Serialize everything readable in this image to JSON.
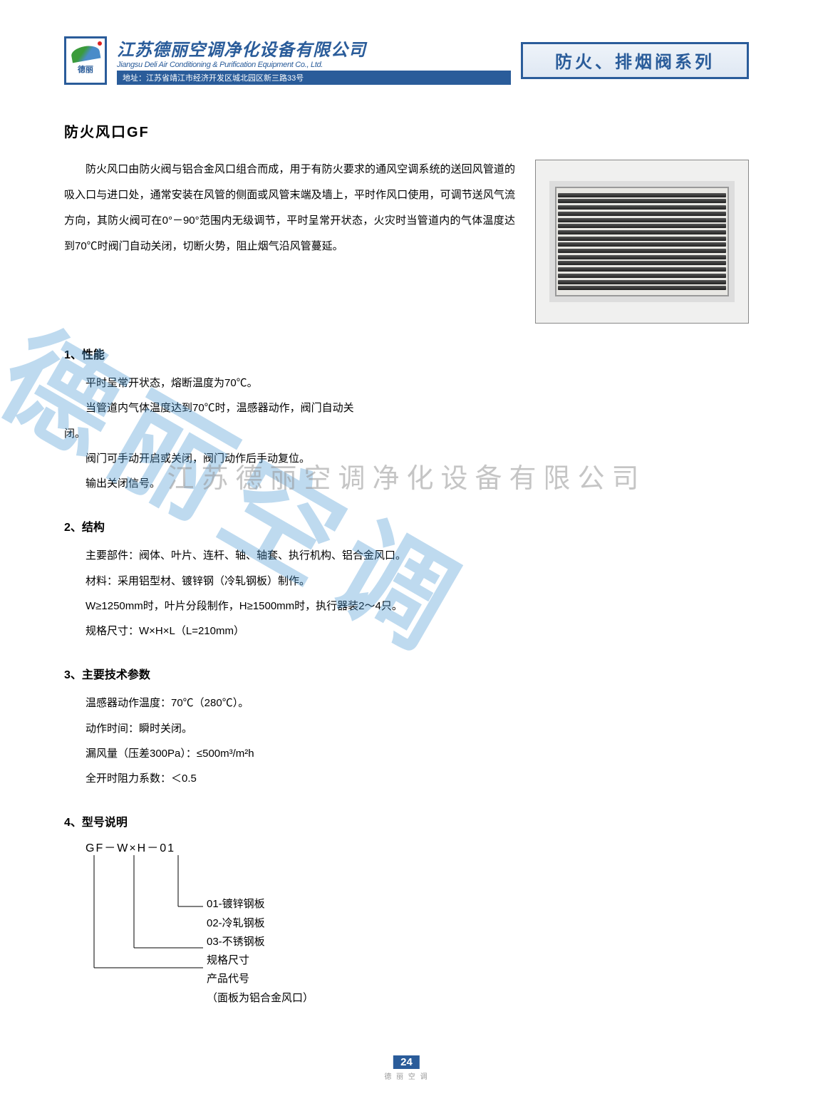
{
  "header": {
    "logo_text": "德丽",
    "company_cn": "江苏德丽空调净化设备有限公司",
    "company_en": "Jiangsu Deli Air Conditioning & Purification Equipment Co., Ltd.",
    "address": "地址：江苏省靖江市经济开发区城北园区新三路33号",
    "series_title": "防火、排烟阀系列"
  },
  "title": "防火风口GF",
  "intro": "防火风口由防火阀与铝合金风口组合而成，用于有防火要求的通风空调系统的送回风管道的吸入口与进口处，通常安装在风管的侧面或风管末端及墙上，平时作风口使用，可调节送风气流方向，其防火阀可在0°－90°范围内无级调节，平时呈常开状态，火灾时当管道内的气体温度达到70℃时阀门自动关闭，切断火势，阻止烟气沿风管蔓延。",
  "sections": [
    {
      "head": "1、性能",
      "lines": [
        "平时呈常开状态，熔断温度为70℃。",
        "当管道内气体温度达到70℃时，温感器动作，阀门自动关闭。",
        "阀门可手动开启或关闭，阀门动作后手动复位。",
        "输出关闭信号。"
      ],
      "breakAfter": 1
    },
    {
      "head": "2、结构",
      "lines": [
        "主要部件：阀体、叶片、连杆、轴、轴套、执行机构、铝合金风口。",
        "材料：采用铝型材、镀锌钢（冷轧钢板）制作。",
        "W≥1250mm时，叶片分段制作，H≥1500mm时，执行器装2～4只。",
        "规格尺寸：W×H×L（L=210mm）"
      ]
    },
    {
      "head": "3、主要技术参数",
      "lines": [
        "温感器动作温度：70℃（280℃）。",
        "动作时间：瞬时关闭。",
        "漏风量（压差300Pa）：≤500m³/m²h",
        "全开时阻力系数：＜0.5"
      ]
    }
  ],
  "model": {
    "head": "4、型号说明",
    "code": "GF－W×H－01",
    "labels": [
      "01-镀锌钢板",
      "02-冷轧钢板",
      "03-不锈钢板",
      "规格尺寸",
      "产品代号",
      "（面板为铝合金风口）"
    ]
  },
  "watermark_big": "德丽空调",
  "watermark_line": "江苏德丽空调净化设备有限公司",
  "page_number": "24",
  "page_footer_sub": "德 丽 空 调",
  "colors": {
    "brand": "#2a5c9a",
    "watermark_blue": "rgba(70,150,210,0.35)",
    "watermark_gray": "rgba(150,150,150,0.55)"
  },
  "product_image": {
    "slat_count": 16
  }
}
